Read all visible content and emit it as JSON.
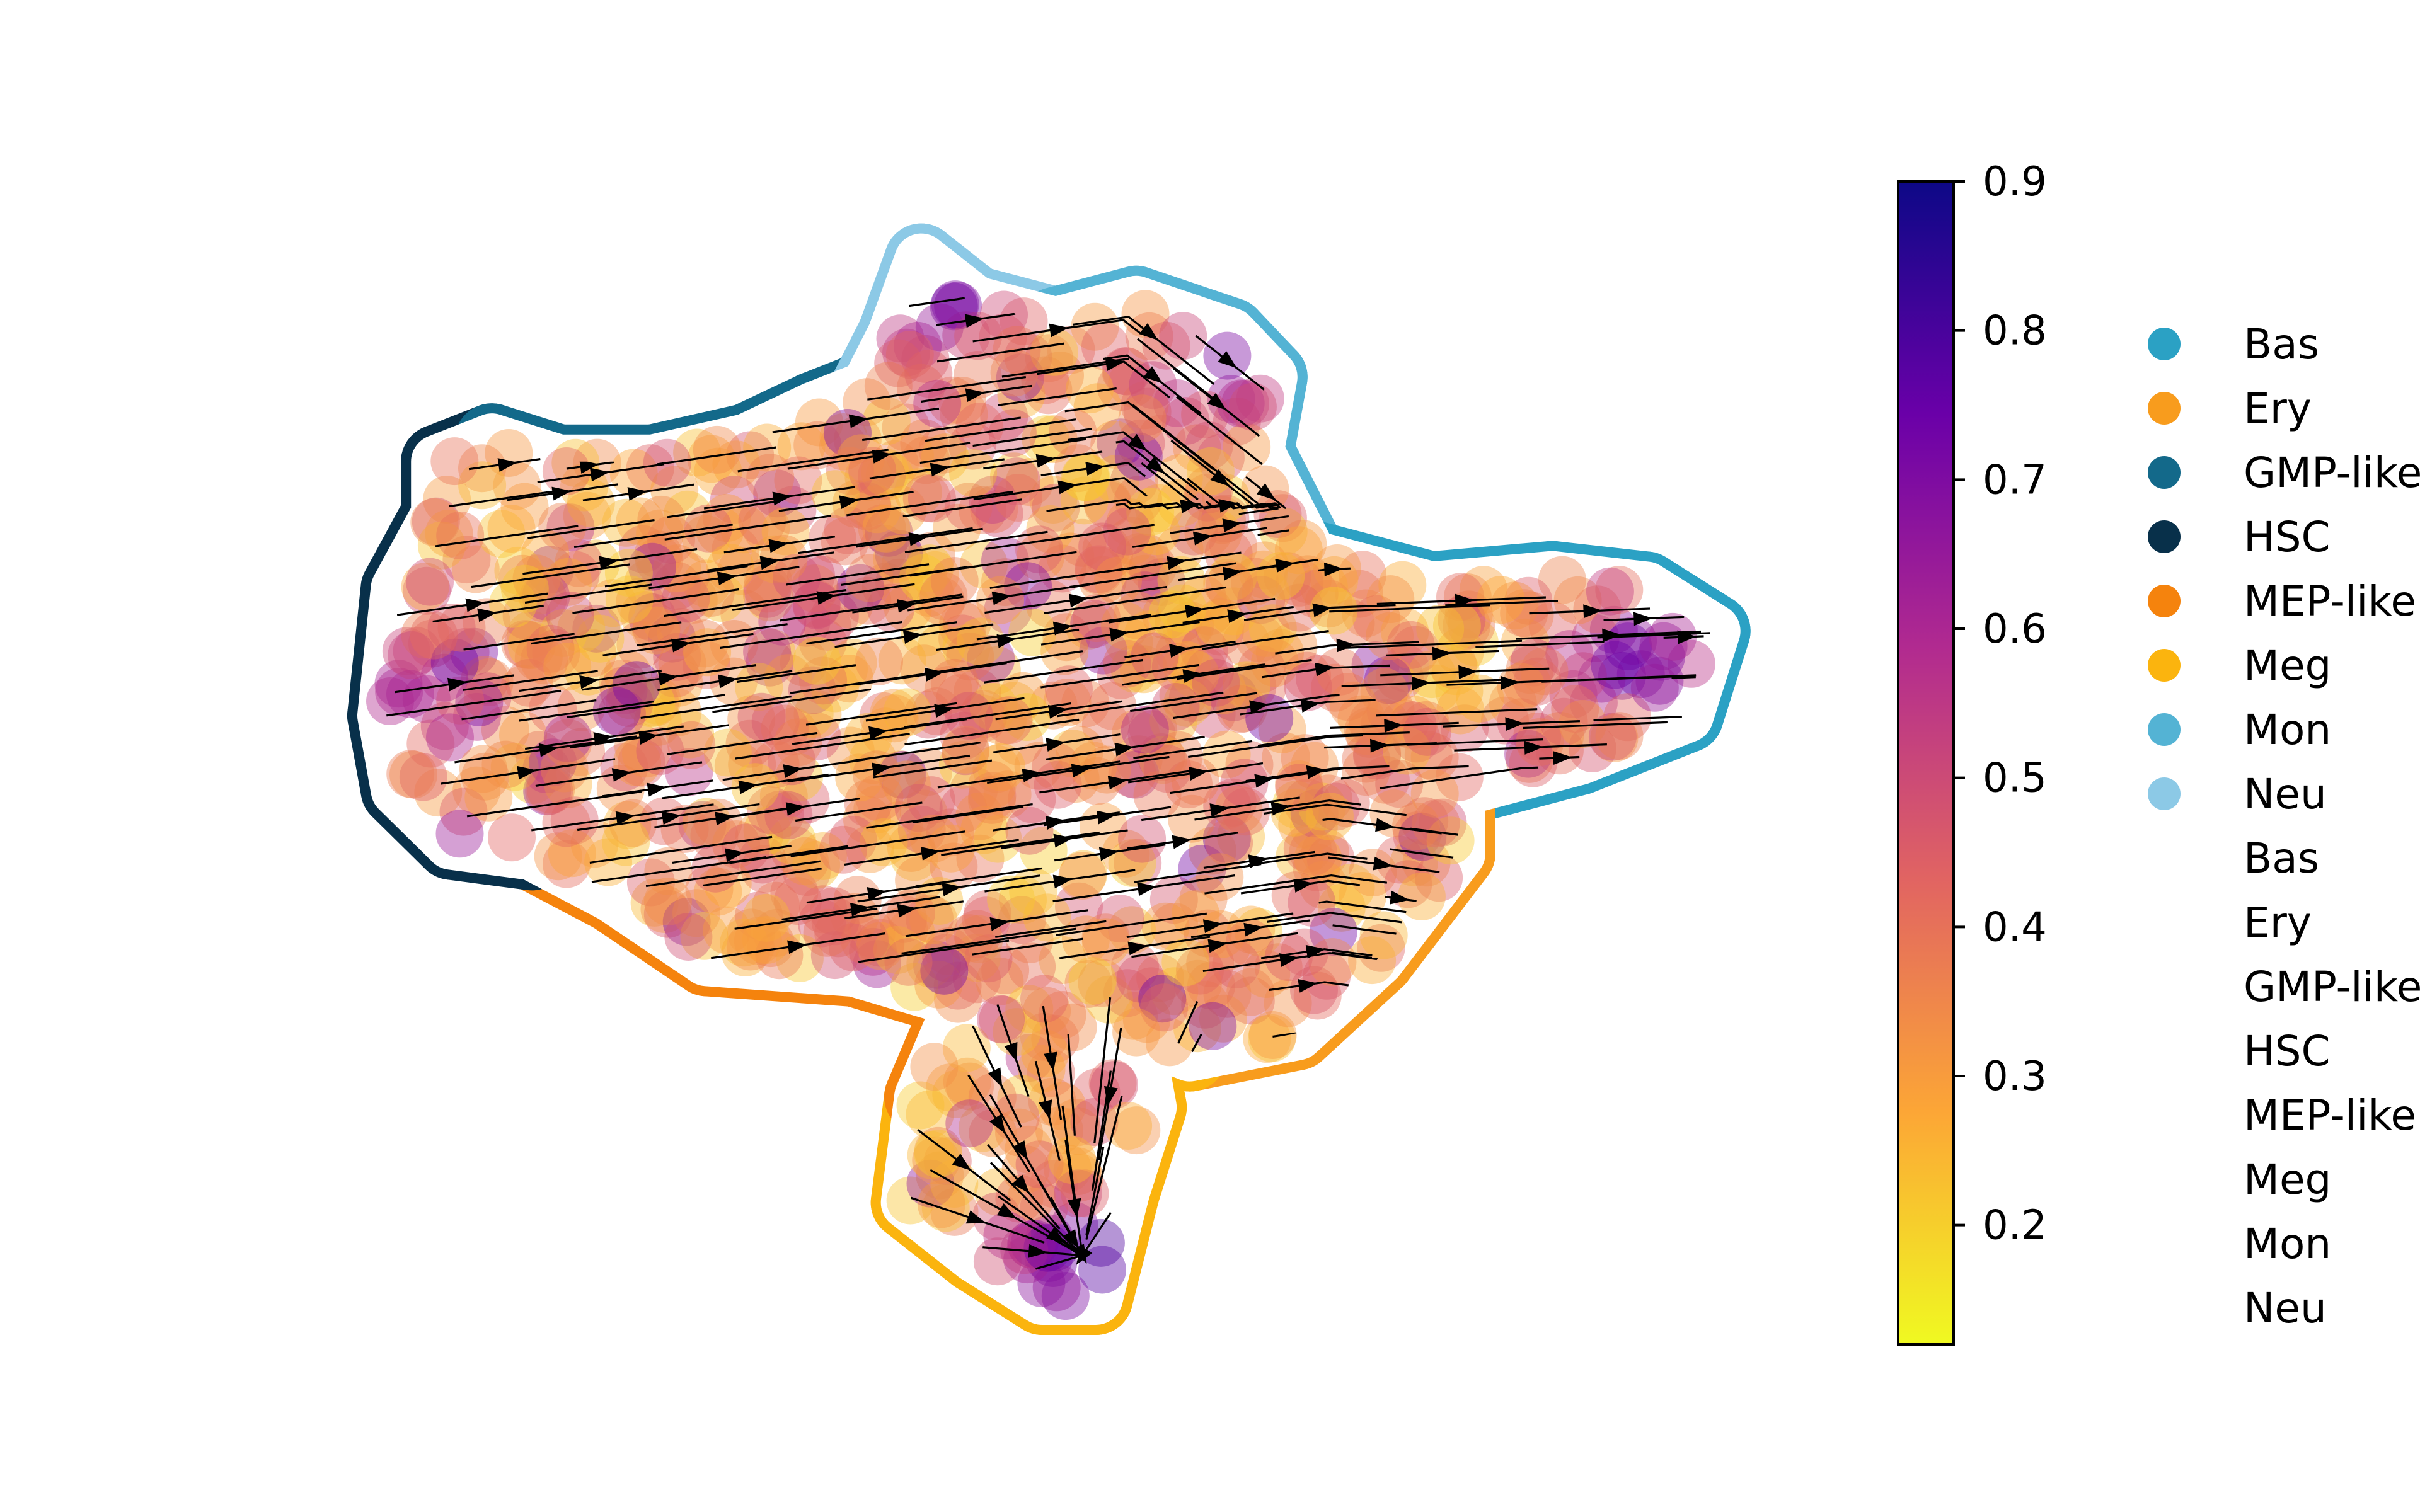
{
  "chart_data": {
    "type": "scatter",
    "title": "",
    "xlabel": "",
    "ylabel": "",
    "axes_visible": false,
    "grid": false,
    "plot_kind": "embedding scatter with velocity streamlines and cluster outlines",
    "colorbar": {
      "cmap": "plasma_r",
      "range": [
        0.12,
        0.9
      ],
      "ticks": [
        "0.2",
        "0.3",
        "0.4",
        "0.5",
        "0.6",
        "0.7",
        "0.8",
        "0.9"
      ],
      "tick_values": [
        0.2,
        0.3,
        0.4,
        0.5,
        0.6,
        0.7,
        0.8,
        0.9
      ],
      "stops": [
        "#f0f921",
        "#fca636",
        "#e16462",
        "#b12a90",
        "#6a00a8",
        "#0d0887"
      ],
      "placement": "right"
    },
    "legend": {
      "placement": "right",
      "entries": [
        {
          "label": "Bas",
          "color": "#2ba1c4"
        },
        {
          "label": "Ery",
          "color": "#f89c1d"
        },
        {
          "label": "GMP-like",
          "color": "#13698a"
        },
        {
          "label": "HSC",
          "color": "#08304a"
        },
        {
          "label": "MEP-like",
          "color": "#f5830d"
        },
        {
          "label": "Meg",
          "color": "#fbb40e"
        },
        {
          "label": "Mon",
          "color": "#54b3d4"
        },
        {
          "label": "Neu",
          "color": "#8cc9e6"
        }
      ],
      "text_only_entries": [
        "Bas",
        "Ery",
        "GMP-like",
        "HSC",
        "MEP-like",
        "Meg",
        "Mon",
        "Neu"
      ]
    },
    "clusters": [
      {
        "name": "HSC",
        "color": "#08304a",
        "x": 0.02,
        "y": 0.58
      },
      {
        "name": "GMP-like",
        "color": "#13698a",
        "x": 0.33,
        "y": 0.82
      },
      {
        "name": "Neu",
        "color": "#8cc9e6",
        "x": 0.4,
        "y": 0.95
      },
      {
        "name": "Mon",
        "color": "#54b3d4",
        "x": 0.56,
        "y": 0.9
      },
      {
        "name": "Bas",
        "color": "#2ba1c4",
        "x": 0.92,
        "y": 0.62
      },
      {
        "name": "MEP-like",
        "color": "#f5830d",
        "x": 0.3,
        "y": 0.32
      },
      {
        "name": "Ery",
        "color": "#f89c1d",
        "x": 0.8,
        "y": 0.35
      },
      {
        "name": "Meg",
        "color": "#fbb40e",
        "x": 0.52,
        "y": 0.05
      }
    ],
    "value_summary": {
      "hotspots_high": [
        {
          "x": 0.4,
          "y": 0.95,
          "value": 0.88
        },
        {
          "x": 0.52,
          "y": 0.04,
          "value": 0.85
        },
        {
          "x": 0.93,
          "y": 0.6,
          "value": 0.78
        },
        {
          "x": 0.63,
          "y": 0.88,
          "value": 0.72
        },
        {
          "x": 0.8,
          "y": 0.28,
          "value": 0.72
        },
        {
          "x": 0.02,
          "y": 0.58,
          "value": 0.62
        }
      ],
      "bulk_range": [
        0.2,
        0.5
      ]
    }
  }
}
